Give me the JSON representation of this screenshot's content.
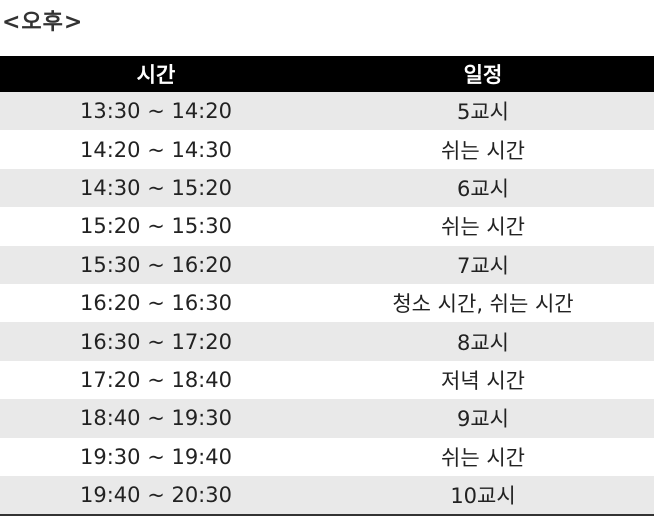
{
  "heading": "<오후>",
  "table": {
    "headers": [
      "시간",
      "일정"
    ],
    "rows": [
      {
        "time": "13:30 ~ 14:20",
        "plan": "5교시"
      },
      {
        "time": "14:20 ~ 14:30",
        "plan": "쉬는 시간"
      },
      {
        "time": "14:30 ~ 15:20",
        "plan": "6교시"
      },
      {
        "time": "15:20 ~ 15:30",
        "plan": "쉬는 시간"
      },
      {
        "time": "15:30 ~ 16:20",
        "plan": "7교시"
      },
      {
        "time": "16:20 ~ 16:30",
        "plan": "청소 시간, 쉬는 시간"
      },
      {
        "time": "16:30 ~ 17:20",
        "plan": "8교시"
      },
      {
        "time": "17:20 ~ 18:40",
        "plan": "저녁 시간"
      },
      {
        "time": "18:40 ~ 19:30",
        "plan": "9교시"
      },
      {
        "time": "19:30 ~ 19:40",
        "plan": "쉬는 시간"
      },
      {
        "time": "19:40 ~ 20:30",
        "plan": "10교시"
      }
    ]
  }
}
